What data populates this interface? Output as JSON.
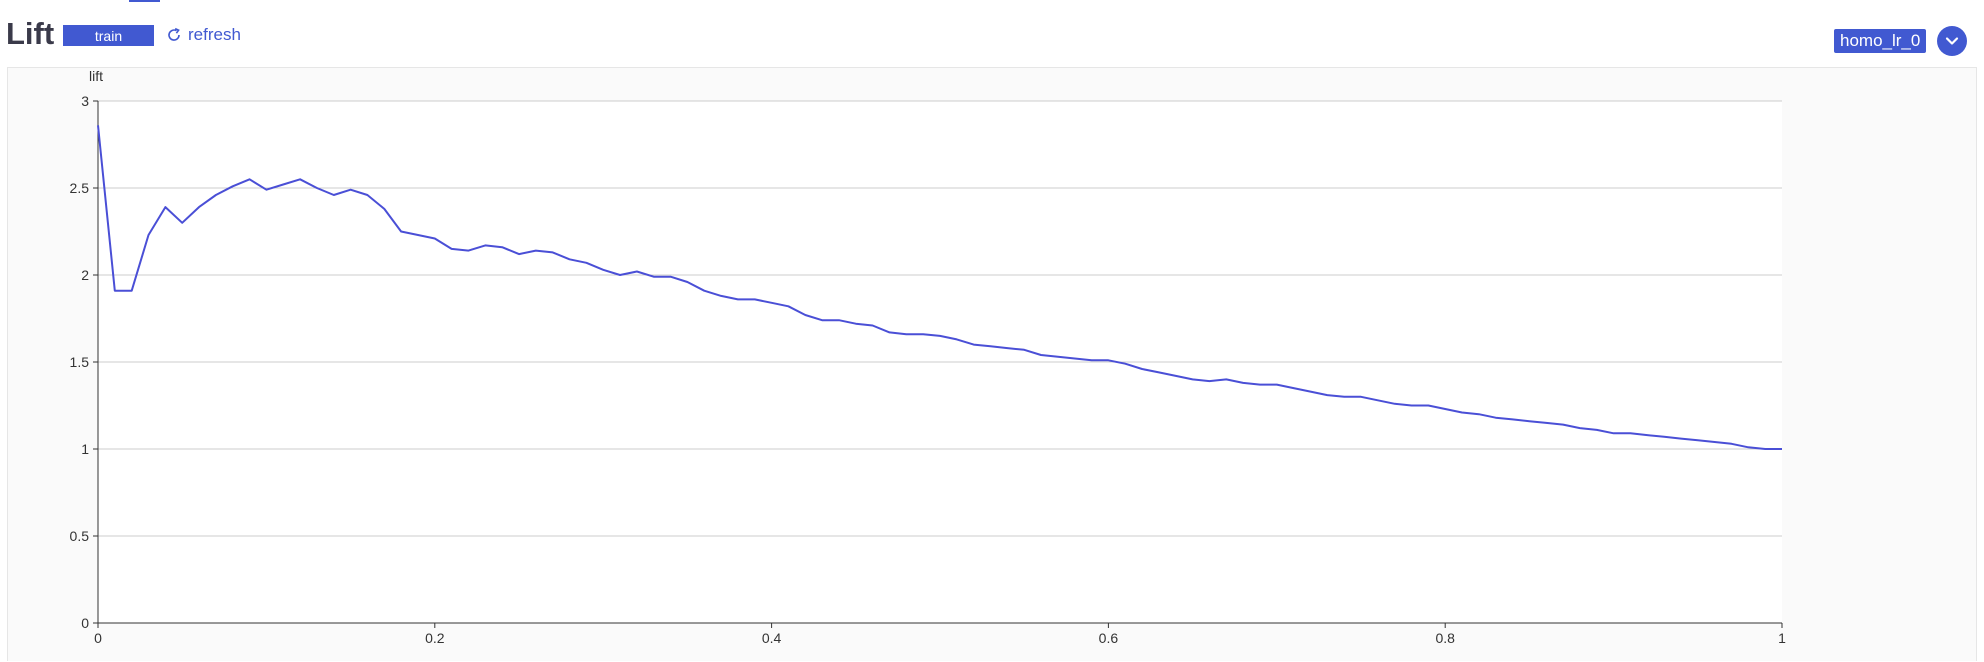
{
  "header": {
    "title": "Lift",
    "train_label": "train",
    "refresh_label": "refresh",
    "model_label": "homo_lr_0"
  },
  "colors": {
    "accent": "#4159d1",
    "line": "#4a4fd6",
    "grid": "#cccccc"
  },
  "icons": {
    "refresh": "refresh-icon",
    "dropdown": "chevron-down-icon"
  },
  "chart_data": {
    "type": "line",
    "title": "",
    "xlabel": "",
    "ylabel": "lift",
    "xlim": [
      0,
      1
    ],
    "ylim": [
      0,
      3
    ],
    "x_ticks": [
      "0",
      "0.2",
      "0.4",
      "0.6",
      "0.8",
      "1"
    ],
    "y_ticks": [
      "0",
      "0.5",
      "1",
      "1.5",
      "2",
      "2.5",
      "3"
    ],
    "grid": true,
    "series": [
      {
        "x": [
          0,
          0.01,
          0.02,
          0.03,
          0.04,
          0.05,
          0.06,
          0.07,
          0.08,
          0.09,
          0.1,
          0.11,
          0.12,
          0.13,
          0.14,
          0.15,
          0.16,
          0.17,
          0.18,
          0.19,
          0.2,
          0.21,
          0.22,
          0.23,
          0.24,
          0.25,
          0.26,
          0.27,
          0.28,
          0.29,
          0.3,
          0.31,
          0.32,
          0.33,
          0.34,
          0.35,
          0.36,
          0.37,
          0.38,
          0.39,
          0.4,
          0.41,
          0.42,
          0.43,
          0.44,
          0.45,
          0.46,
          0.47,
          0.48,
          0.49,
          0.5,
          0.51,
          0.52,
          0.53,
          0.54,
          0.55,
          0.56,
          0.57,
          0.58,
          0.59,
          0.6,
          0.61,
          0.62,
          0.63,
          0.64,
          0.65,
          0.66,
          0.67,
          0.68,
          0.69,
          0.7,
          0.71,
          0.72,
          0.73,
          0.74,
          0.75,
          0.76,
          0.77,
          0.78,
          0.79,
          0.8,
          0.81,
          0.82,
          0.83,
          0.84,
          0.85,
          0.86,
          0.87,
          0.88,
          0.89,
          0.9,
          0.91,
          0.92,
          0.93,
          0.94,
          0.95,
          0.96,
          0.97,
          0.98,
          0.99,
          1.0
        ],
        "y": [
          2.86,
          1.91,
          1.91,
          2.23,
          2.39,
          2.3,
          2.39,
          2.46,
          2.51,
          2.55,
          2.49,
          2.52,
          2.55,
          2.5,
          2.46,
          2.49,
          2.46,
          2.38,
          2.25,
          2.23,
          2.21,
          2.15,
          2.14,
          2.17,
          2.16,
          2.12,
          2.14,
          2.13,
          2.09,
          2.07,
          2.03,
          2.0,
          2.02,
          1.99,
          1.99,
          1.96,
          1.91,
          1.88,
          1.86,
          1.86,
          1.84,
          1.82,
          1.77,
          1.74,
          1.74,
          1.72,
          1.71,
          1.67,
          1.66,
          1.66,
          1.65,
          1.63,
          1.6,
          1.59,
          1.58,
          1.57,
          1.54,
          1.53,
          1.52,
          1.51,
          1.51,
          1.49,
          1.46,
          1.44,
          1.42,
          1.4,
          1.39,
          1.4,
          1.38,
          1.37,
          1.37,
          1.35,
          1.33,
          1.31,
          1.3,
          1.3,
          1.28,
          1.26,
          1.25,
          1.25,
          1.23,
          1.21,
          1.2,
          1.18,
          1.17,
          1.16,
          1.15,
          1.14,
          1.12,
          1.11,
          1.09,
          1.09,
          1.08,
          1.07,
          1.06,
          1.05,
          1.04,
          1.03,
          1.01,
          1.0,
          1.0
        ]
      }
    ]
  }
}
